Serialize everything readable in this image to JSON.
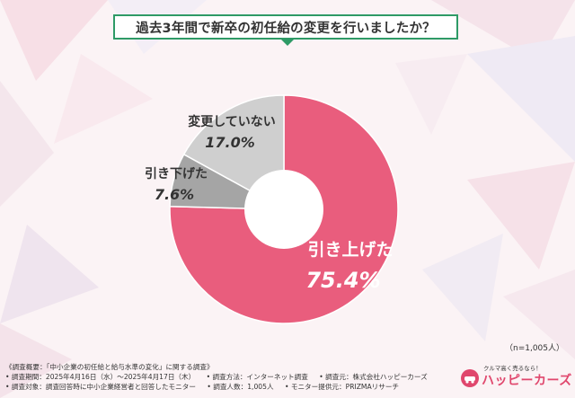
{
  "title": "過去3年間で新卒の初任給の変更を行いましたか？",
  "sample_size": "（n=1,005人）",
  "chart_data": {
    "type": "pie",
    "donut": true,
    "slices": [
      {
        "label": "引き上げた",
        "value": 75.4,
        "value_label": "75.4%",
        "color": "#e95d7d"
      },
      {
        "label": "引き下げた",
        "value": 7.6,
        "value_label": "7.6%",
        "color": "#a5a5a5"
      },
      {
        "label": "変更していない",
        "value": 17.0,
        "value_label": "17.0%",
        "color": "#cfcfcf"
      }
    ]
  },
  "notes": {
    "row1": [
      "《調査概要：「中小企業の初任給と給与水準の変化」に関する調査》"
    ],
    "row2": [
      "• 調査期間：2025年4月16日（水）〜2025年4月17日（木）",
      "• 調査方法：インターネット調査",
      "• 調査元：株式会社ハッピーカーズ"
    ],
    "row3": [
      "• 調査対象：調査回答時に中小企業経営者と回答したモニター",
      "• 調査人数：1,005人",
      "• モニター提供元：PRIZMAリサーチ"
    ]
  },
  "logo": {
    "tagline": "クルマ高く売るなら！",
    "name": "ハッピーカーズ"
  }
}
